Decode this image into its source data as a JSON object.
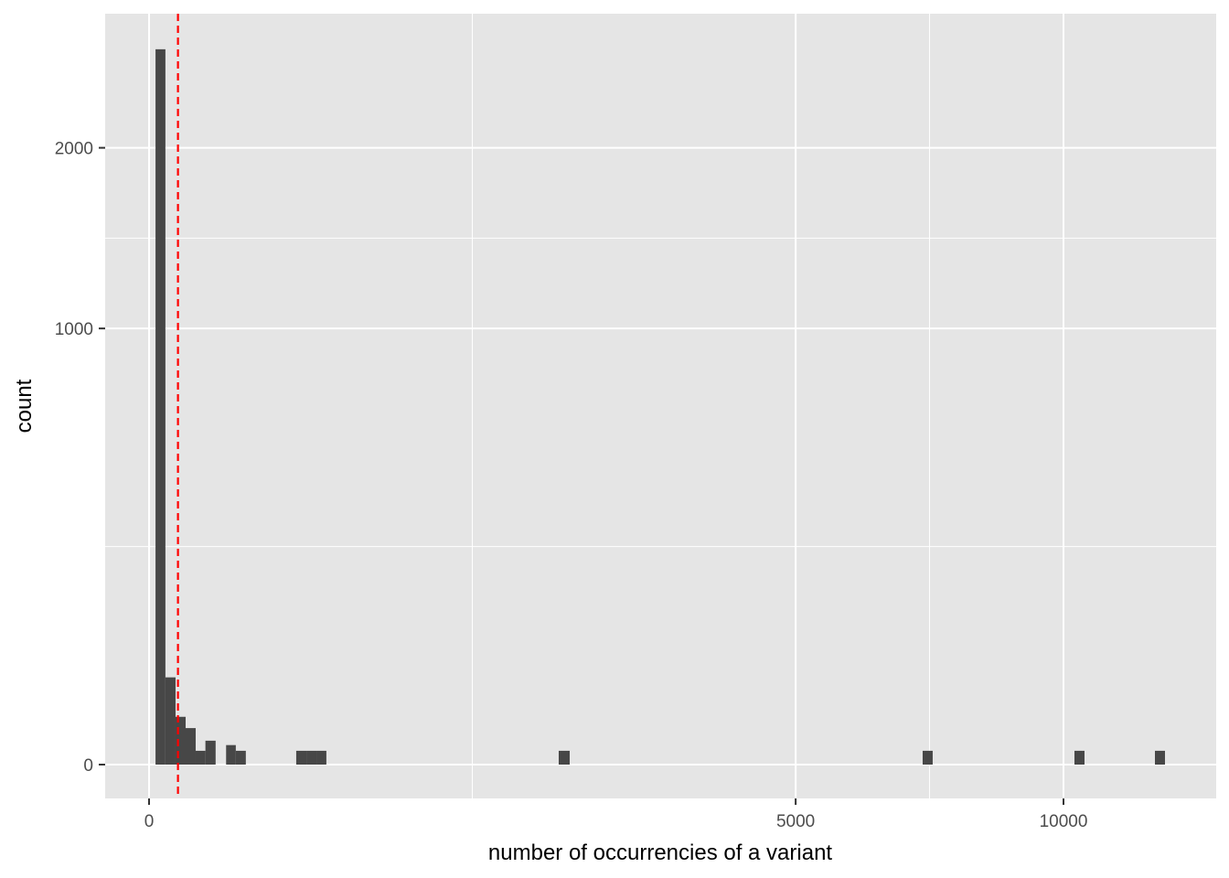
{
  "chart_data": {
    "type": "bar",
    "subtype": "histogram",
    "title": "",
    "xlabel": "number of occurrencies of a variant",
    "ylabel": "count",
    "x_scale": "sqrt",
    "y_scale": "sqrt",
    "x_ticks": [
      0,
      5000,
      10000
    ],
    "x_tick_labels": [
      "0",
      "5000",
      "10000"
    ],
    "y_ticks": [
      0,
      1000,
      2000
    ],
    "y_tick_labels": [
      "0",
      "1000",
      "2000"
    ],
    "grid": true,
    "bar_color": "#474747",
    "panel_background": "#e5e5e5",
    "bins": [
      {
        "x_min": 0.5,
        "x_max": 3.2,
        "count": 2690
      },
      {
        "x_min": 3.2,
        "x_max": 8.4,
        "count": 40
      },
      {
        "x_min": 8.4,
        "x_max": 16,
        "count": 12
      },
      {
        "x_min": 16,
        "x_max": 26,
        "count": 7
      },
      {
        "x_min": 26,
        "x_max": 38,
        "count": 1
      },
      {
        "x_min": 38,
        "x_max": 53,
        "count": 3
      },
      {
        "x_min": 71,
        "x_max": 90,
        "count": 2
      },
      {
        "x_min": 90,
        "x_max": 112,
        "count": 1
      },
      {
        "x_min": 259,
        "x_max": 296,
        "count": 1
      },
      {
        "x_min": 296,
        "x_max": 335,
        "count": 1
      },
      {
        "x_min": 335,
        "x_max": 376,
        "count": 1
      },
      {
        "x_min": 2007,
        "x_max": 2116,
        "count": 1
      },
      {
        "x_min": 7157,
        "x_max": 7344,
        "count": 1
      },
      {
        "x_min": 10241,
        "x_max": 10465,
        "count": 1
      },
      {
        "x_min": 12100,
        "x_max": 12343,
        "count": 1
      }
    ],
    "reference_line": {
      "x": 10,
      "color": "#ff0000",
      "style": "dashed"
    }
  }
}
